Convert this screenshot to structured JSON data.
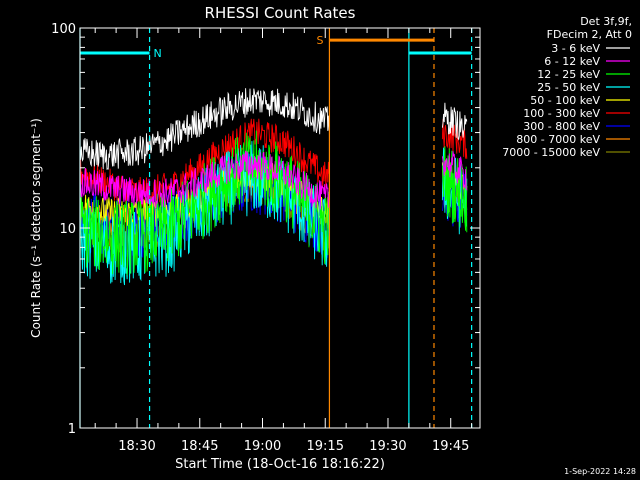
{
  "chart_data": {
    "type": "line",
    "title": "RHESSI Count Rates",
    "xlabel": "Start Time (18-Oct-16 18:16:22)",
    "ylabel": "Count Rate (s⁻¹ detector segment⁻¹)",
    "y_scale": "log",
    "ylim": [
      1,
      100
    ],
    "xlim": [
      "18:16:22",
      "19:52:00"
    ],
    "y_ticks": [
      "1",
      "10",
      "100"
    ],
    "x_ticks": [
      "18:30",
      "18:45",
      "19:00",
      "19:15",
      "19:30",
      "19:45"
    ],
    "legend_placement": "top-right",
    "legend_header": [
      "Det 3f,9f,",
      "FDecim 2, Att 0"
    ],
    "footer_date": "1-Sep-2022 14:28",
    "series": [
      {
        "name": "3 - 6 keV",
        "color": "#ffffff",
        "x": [
          "18:16:22",
          "18:22",
          "18:30",
          "18:38",
          "18:45",
          "18:52",
          "18:58",
          "19:05",
          "19:10",
          "19:15",
          "19:43",
          "19:46",
          "19:49"
        ],
        "values": [
          24,
          23,
          24,
          28,
          34,
          40,
          44,
          42,
          38,
          34,
          36,
          34,
          30
        ]
      },
      {
        "name": "6 - 12 keV",
        "color": "#ff00ff",
        "x": [
          "18:16:22",
          "18:22",
          "18:30",
          "18:38",
          "18:45",
          "18:52",
          "18:58",
          "19:05",
          "19:10",
          "19:15",
          "19:43",
          "19:46",
          "19:49"
        ],
        "values": [
          17,
          16,
          15,
          15,
          17,
          20,
          21,
          19,
          16,
          14,
          22,
          20,
          18
        ]
      },
      {
        "name": "12 - 25 keV",
        "color": "#00ff00",
        "x": [
          "18:16:22",
          "18:22",
          "18:30",
          "18:38",
          "18:45",
          "18:52",
          "18:58",
          "19:05",
          "19:10",
          "19:15",
          "19:43",
          "19:46",
          "19:49"
        ],
        "values": [
          10,
          9,
          9,
          10,
          13,
          18,
          20,
          17,
          13,
          10,
          18,
          16,
          14
        ]
      },
      {
        "name": "25 - 50 keV",
        "color": "#00ffff",
        "x": [
          "18:16:22",
          "18:22",
          "18:30",
          "18:38",
          "18:45",
          "18:52",
          "18:58",
          "19:05",
          "19:10",
          "19:15",
          "19:43",
          "19:46",
          "19:49"
        ],
        "values": [
          9,
          8,
          8,
          9,
          12,
          16,
          18,
          15,
          12,
          9,
          17,
          15,
          13
        ]
      },
      {
        "name": "50 - 100 keV",
        "color": "#ffff00",
        "x": [
          "18:16:22",
          "18:22",
          "18:30",
          "18:38",
          "18:45",
          "18:52",
          "18:58",
          "19:05",
          "19:10",
          "19:15",
          "19:43",
          "19:46",
          "19:49"
        ],
        "values": [
          13,
          12,
          12,
          12,
          14,
          18,
          19,
          17,
          14,
          12,
          19,
          17,
          15
        ]
      },
      {
        "name": "100 - 300 keV",
        "color": "#ff0000",
        "x": [
          "18:16:22",
          "18:22",
          "18:30",
          "18:38",
          "18:45",
          "18:52",
          "18:58",
          "19:05",
          "19:10",
          "19:15",
          "19:43",
          "19:46",
          "19:49"
        ],
        "values": [
          19,
          17,
          15,
          16,
          20,
          26,
          30,
          27,
          22,
          18,
          30,
          28,
          26
        ]
      },
      {
        "name": "300 - 800 keV",
        "color": "#0000ff",
        "x": [
          "18:16:22",
          "18:22",
          "18:30",
          "18:38",
          "18:45",
          "18:52",
          "18:58",
          "19:05",
          "19:10",
          "19:15",
          "19:43",
          "19:46",
          "19:49"
        ],
        "values": [
          11,
          10,
          10,
          11,
          13,
          16,
          17,
          15,
          12,
          10,
          16,
          14,
          13
        ]
      },
      {
        "name": "800 - 7000 keV",
        "color": "#ff8800",
        "x": [
          "18:16:22",
          "18:22",
          "18:30",
          "18:38",
          "18:45",
          "18:52",
          "18:58",
          "19:05",
          "19:10",
          "19:15",
          "19:43",
          "19:46",
          "19:49"
        ],
        "values": [
          12,
          11,
          11,
          12,
          14,
          17,
          18,
          16,
          13,
          11,
          17,
          15,
          14
        ]
      },
      {
        "name": "7000 - 15000 keV",
        "color": "#808000",
        "x": [
          "18:16:22",
          "18:22",
          "18:30",
          "18:38",
          "18:45",
          "18:52",
          "18:58",
          "19:05",
          "19:10",
          "19:15",
          "19:43",
          "19:46",
          "19:49"
        ],
        "values": [
          10,
          9,
          9,
          10,
          12,
          15,
          16,
          14,
          11,
          9,
          15,
          13,
          12
        ]
      }
    ],
    "annotations": [
      {
        "label": "N",
        "color": "#00ffff",
        "bar_start": "18:16:22",
        "bar_end": "18:33",
        "level": 75
      },
      {
        "label": "S",
        "color": "#ff8800",
        "bar_start": "19:16",
        "bar_end": "19:41",
        "level": 87
      },
      {
        "label": "",
        "color": "#00ffff",
        "bar_start": "19:35",
        "bar_end": "19:50",
        "level": 75
      }
    ],
    "vertical_lines": [
      {
        "time": "18:16:22",
        "color": "#00ffff",
        "style": "solid"
      },
      {
        "time": "18:33",
        "color": "#00ffff",
        "style": "dashed"
      },
      {
        "time": "19:16",
        "color": "#ff8800",
        "style": "solid"
      },
      {
        "time": "19:35",
        "color": "#00ffff",
        "style": "solid"
      },
      {
        "time": "19:41",
        "color": "#ff8800",
        "style": "dashed"
      },
      {
        "time": "19:50",
        "color": "#00ffff",
        "style": "dashed"
      }
    ],
    "data_gap": [
      "19:16",
      "19:43"
    ]
  }
}
